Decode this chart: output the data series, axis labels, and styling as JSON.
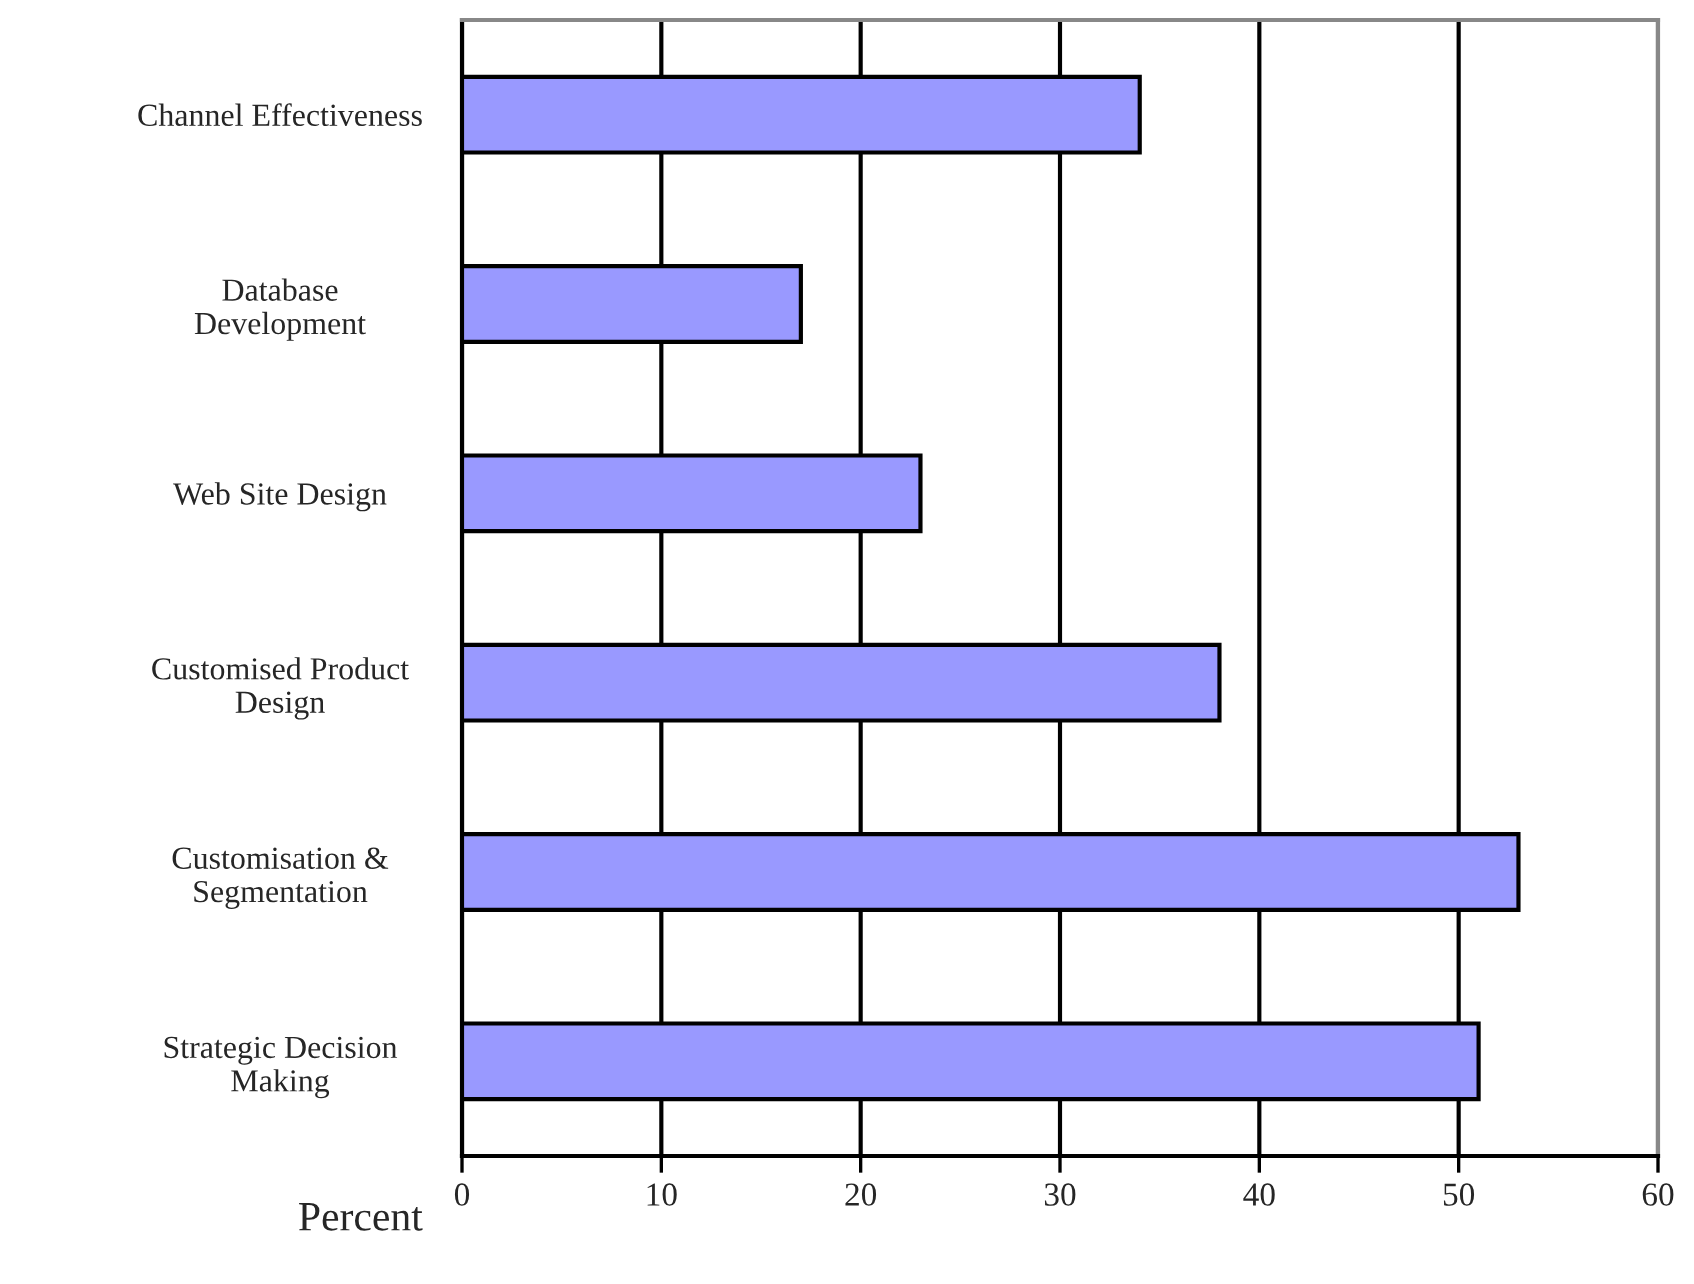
{
  "chart_data": {
    "type": "bar",
    "orientation": "horizontal",
    "xlabel": "Percent",
    "categories": [
      "Channel Effectiveness",
      "Database\nDevelopment",
      "Web Site Design",
      "Customised Product\nDesign",
      "Customisation &\nSegmentation",
      "Strategic Decision\nMaking"
    ],
    "values": [
      34,
      17,
      23,
      38,
      53,
      51
    ],
    "color": "#9999ff",
    "xlim": [
      0,
      60
    ],
    "xticks": [
      0,
      10,
      20,
      30,
      40,
      50,
      60
    ],
    "grid": "x"
  }
}
